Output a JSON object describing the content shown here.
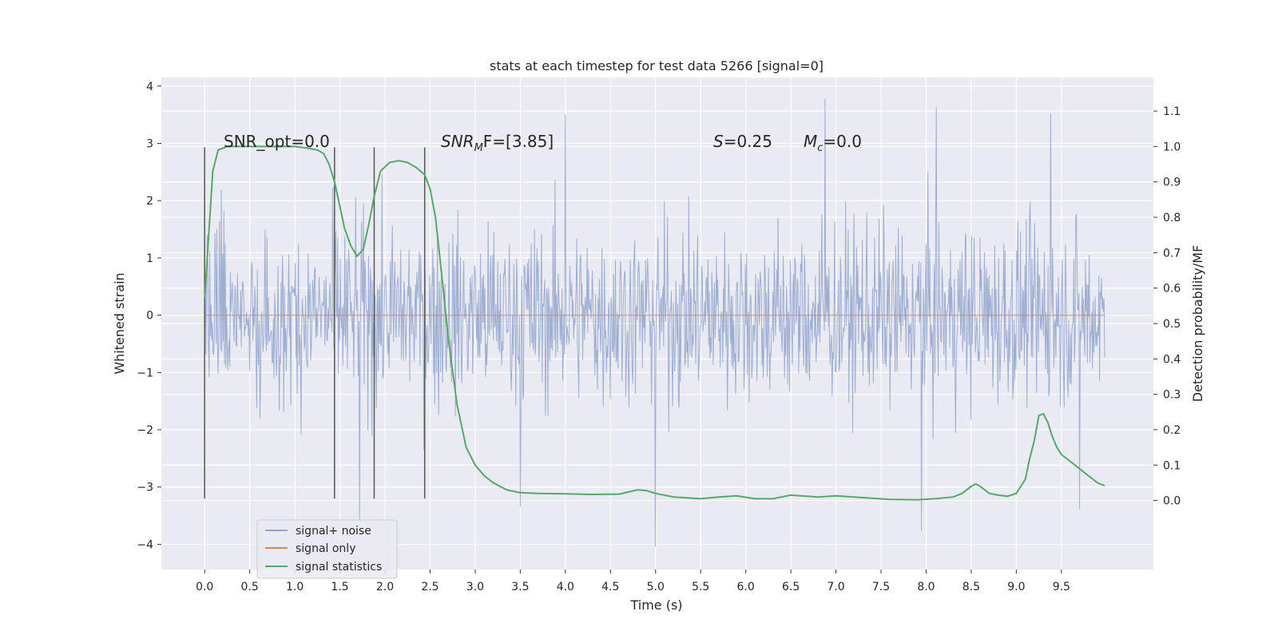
{
  "chart_data": {
    "type": "line",
    "title": "stats at each timestep for test data 5266 [signal=0]",
    "xlabel": "Time (s)",
    "ylabel_left": "Whitened strain",
    "ylabel_right": "Detection probability/MF",
    "xlim": [
      -0.48,
      10.52
    ],
    "ylim_left": [
      -4.44,
      4.15
    ],
    "ylim_right": [
      -0.195,
      1.195
    ],
    "x_ticks": [
      "0.0",
      "0.5",
      "1.0",
      "1.5",
      "2.0",
      "2.5",
      "3.0",
      "3.5",
      "4.0",
      "4.5",
      "5.0",
      "5.5",
      "6.0",
      "6.5",
      "7.0",
      "7.5",
      "8.0",
      "8.5",
      "9.0",
      "9.5"
    ],
    "x_tick_values": [
      0,
      0.5,
      1,
      1.5,
      2,
      2.5,
      3,
      3.5,
      4,
      4.5,
      5,
      5.5,
      6,
      6.5,
      7,
      7.5,
      8,
      8.5,
      9,
      9.5
    ],
    "y_left_ticks": [
      "−4",
      "−3",
      "−2",
      "−1",
      "0",
      "1",
      "2",
      "3",
      "4"
    ],
    "y_left_tick_values": [
      -4,
      -3,
      -2,
      -1,
      0,
      1,
      2,
      3,
      4
    ],
    "y_right_ticks": [
      "0.0",
      "0.1",
      "0.2",
      "0.3",
      "0.4",
      "0.5",
      "0.6",
      "0.7",
      "0.8",
      "0.9",
      "1.0",
      "1.1"
    ],
    "y_right_tick_values": [
      0,
      0.1,
      0.2,
      0.3,
      0.4,
      0.5,
      0.6,
      0.7,
      0.8,
      0.9,
      1.0,
      1.1
    ],
    "grid": true,
    "legend_placement": "lower-left",
    "annotations": {
      "snr_opt": "SNR_opt=0.0",
      "snr_mf_main": "SNR",
      "snr_mf_sub": "M",
      "snr_mf_rest": "F=[3.85]",
      "s_main": "S",
      "s_rest": "=0.25",
      "mc_main": "M",
      "mc_sub": "c",
      "mc_rest": "=0.0"
    },
    "markers": {
      "x": [
        0.0,
        1.44,
        1.88,
        2.44
      ],
      "y_range": [
        -3.2,
        2.93
      ]
    },
    "series": [
      {
        "name": "signal+ noise",
        "color": "#8fa3cc",
        "axis": "left",
        "x_range": [
          0.0,
          9.98
        ],
        "typical_amplitude": 1.1,
        "extremes": [
          {
            "x": 4.0,
            "y": 3.5
          },
          {
            "x": 6.88,
            "y": 3.78
          },
          {
            "x": 8.11,
            "y": 3.63
          },
          {
            "x": 9.38,
            "y": 3.52
          },
          {
            "x": 5.0,
            "y": -4.04
          },
          {
            "x": 7.95,
            "y": -3.77
          },
          {
            "x": 1.72,
            "y": -3.6
          },
          {
            "x": 9.7,
            "y": -3.39
          },
          {
            "x": 3.5,
            "y": -3.34
          }
        ]
      },
      {
        "name": "signal only",
        "color": "#dd8452",
        "axis": "left",
        "x": [
          0.0,
          9.98
        ],
        "y": [
          0.0,
          0.0
        ]
      },
      {
        "name": "signal statistics",
        "color": "#55a868",
        "axis": "right",
        "x": [
          0.0,
          0.09,
          0.15,
          0.25,
          0.4,
          0.6,
          0.8,
          1.0,
          1.15,
          1.25,
          1.32,
          1.38,
          1.44,
          1.5,
          1.55,
          1.62,
          1.69,
          1.76,
          1.82,
          1.88,
          1.95,
          2.05,
          2.15,
          2.25,
          2.35,
          2.44,
          2.5,
          2.56,
          2.62,
          2.7,
          2.8,
          2.9,
          3.0,
          3.1,
          3.2,
          3.35,
          3.5,
          3.7,
          4.0,
          4.3,
          4.6,
          4.8,
          4.9,
          5.0,
          5.2,
          5.5,
          5.7,
          5.9,
          6.1,
          6.3,
          6.5,
          6.8,
          7.0,
          7.3,
          7.6,
          7.9,
          8.1,
          8.3,
          8.4,
          8.5,
          8.55,
          8.6,
          8.7,
          8.8,
          8.9,
          9.0,
          9.1,
          9.15,
          9.2,
          9.25,
          9.3,
          9.35,
          9.4,
          9.45,
          9.5,
          9.6,
          9.7,
          9.8,
          9.9,
          9.98
        ],
        "y": [
          0.57,
          0.93,
          0.99,
          1.0,
          1.0,
          1.0,
          1.0,
          1.0,
          0.995,
          0.99,
          0.98,
          0.95,
          0.9,
          0.83,
          0.77,
          0.72,
          0.69,
          0.71,
          0.78,
          0.86,
          0.93,
          0.955,
          0.96,
          0.955,
          0.94,
          0.92,
          0.88,
          0.8,
          0.66,
          0.46,
          0.27,
          0.15,
          0.1,
          0.07,
          0.05,
          0.03,
          0.022,
          0.02,
          0.019,
          0.017,
          0.018,
          0.03,
          0.028,
          0.02,
          0.01,
          0.005,
          0.01,
          0.013,
          0.005,
          0.005,
          0.015,
          0.01,
          0.013,
          0.008,
          0.003,
          0.002,
          0.005,
          0.01,
          0.02,
          0.04,
          0.047,
          0.04,
          0.02,
          0.015,
          0.012,
          0.02,
          0.06,
          0.12,
          0.17,
          0.24,
          0.245,
          0.22,
          0.18,
          0.15,
          0.13,
          0.11,
          0.09,
          0.07,
          0.05,
          0.042
        ]
      }
    ]
  }
}
